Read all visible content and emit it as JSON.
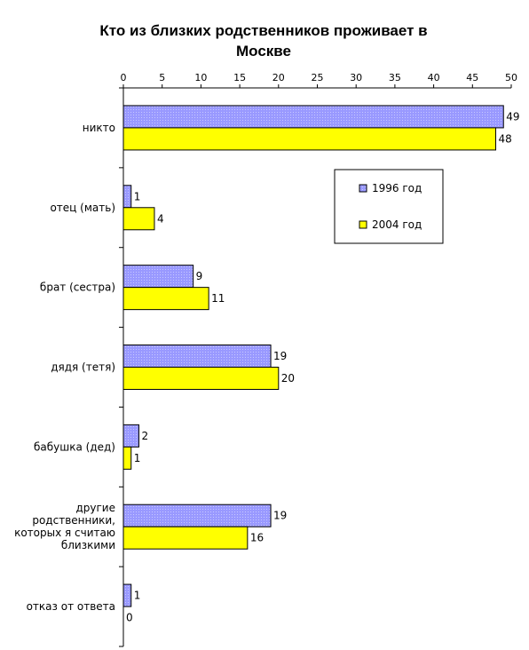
{
  "chart_data": {
    "type": "bar",
    "orientation": "horizontal",
    "title": "Кто из близких родственников проживает в Москве",
    "title_lines": [
      "Кто из близких родственников проживает в",
      "Москве"
    ],
    "categories": [
      [
        "никто"
      ],
      [
        "отец (мать)"
      ],
      [
        "брат (сестра)"
      ],
      [
        "дядя (тетя)"
      ],
      [
        "бабушка (дед)"
      ],
      [
        "другие",
        "родственники,",
        "которых я считаю",
        "близкими"
      ],
      [
        "отказ от ответа"
      ]
    ],
    "series": [
      {
        "name": "1996 год",
        "values": [
          49,
          1,
          9,
          19,
          2,
          19,
          1
        ],
        "color": "#9999ff"
      },
      {
        "name": "2004 год",
        "values": [
          48,
          4,
          11,
          20,
          1,
          16,
          0
        ],
        "color": "#ffff00"
      }
    ],
    "xlim": [
      0,
      50
    ],
    "xticks": [
      0,
      5,
      10,
      15,
      20,
      25,
      30,
      35,
      40,
      45,
      50
    ],
    "axis_position": "top",
    "legend": "upper-right-inside",
    "grid": false
  }
}
